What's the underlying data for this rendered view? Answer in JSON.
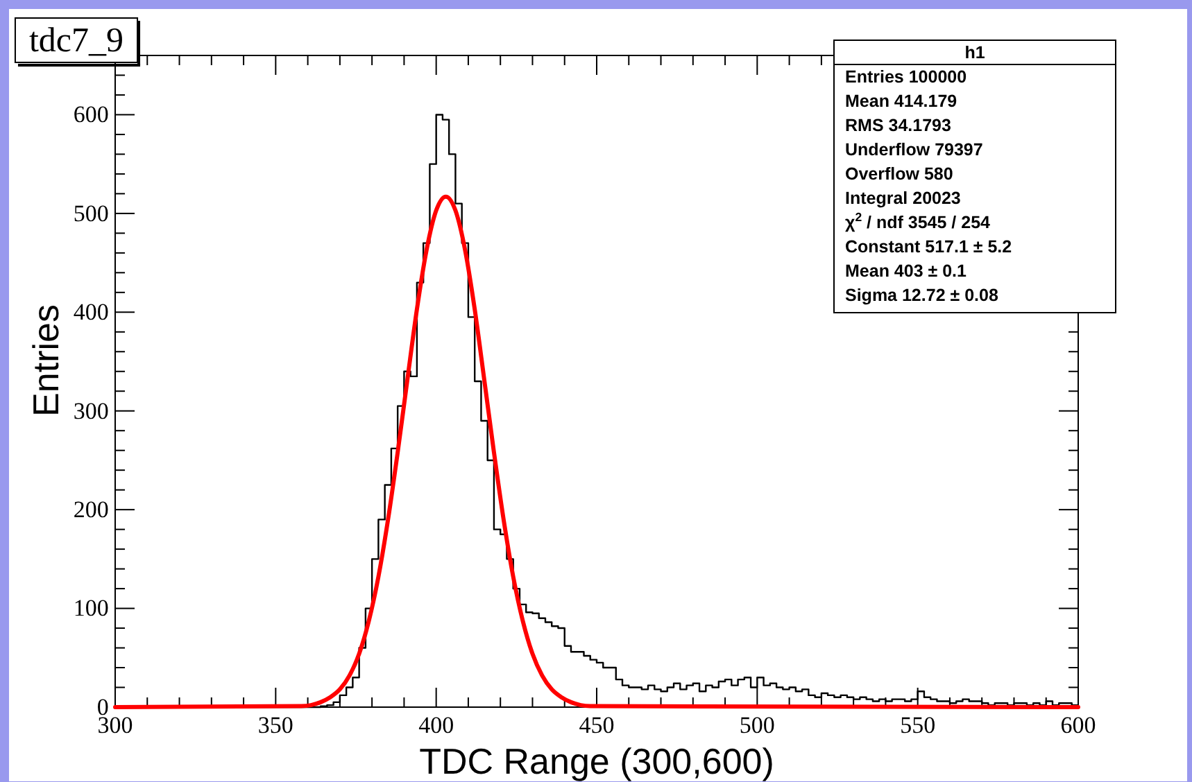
{
  "chart_data": {
    "type": "histogram",
    "title": "tdc7_9",
    "xlabel": "TDC Range (300,600)",
    "ylabel": "Entries",
    "annotations": [
      "h1",
      "Entries 100000",
      "Mean 414.179",
      "RMS 34.1793",
      "Underflow 79397",
      "Overflow 580",
      "Integral 20023",
      "χ$^{2}$ / ndf 3545 / 254",
      "Constant 517.1 ± 5.2",
      "Mean 403 ± 0.1",
      "Sigma 12.72 ± 0.08"
    ],
    "xlim": [
      300,
      600
    ],
    "ylim": [
      0,
      660
    ],
    "xticks": [
      300,
      {
        "value": 310,
        "label": null
      },
      {
        "value": 320,
        "label": null
      },
      {
        "value": 330,
        "label": null
      },
      {
        "value": 340,
        "label": null
      },
      350,
      {
        "value": 360,
        "label": null
      },
      {
        "value": 370,
        "label": null
      },
      {
        "value": 380,
        "label": null
      },
      {
        "value": 390,
        "label": null
      },
      400,
      {
        "value": 410,
        "label": null
      },
      {
        "value": 420,
        "label": null
      },
      {
        "value": 430,
        "label": null
      },
      {
        "value": 440,
        "label": null
      },
      450,
      {
        "value": 460,
        "label": null
      },
      {
        "value": 470,
        "label": null
      },
      {
        "value": 480,
        "label": null
      },
      {
        "value": 490,
        "label": null
      },
      500,
      {
        "value": 510,
        "label": null
      },
      {
        "value": 520,
        "label": null
      },
      {
        "value": 530,
        "label": null
      },
      {
        "value": 540,
        "label": null
      },
      550,
      {
        "value": 560,
        "label": null
      },
      {
        "value": 570,
        "label": null
      },
      {
        "value": 580,
        "label": null
      },
      {
        "value": 590,
        "label": null
      },
      600
    ],
    "yticks": [
      0,
      {
        "value": 20,
        "label": null
      },
      {
        "value": 40,
        "label": null
      },
      {
        "value": 60,
        "label": null
      },
      {
        "value": 80,
        "label": null
      },
      100,
      {
        "value": 120,
        "label": null
      },
      {
        "value": 140,
        "label": null
      },
      {
        "value": 160,
        "label": null
      },
      {
        "value": 180,
        "label": null
      },
      200,
      {
        "value": 220,
        "label": null
      },
      {
        "value": 240,
        "label": null
      },
      {
        "value": 260,
        "label": null
      },
      {
        "value": 280,
        "label": null
      },
      300,
      {
        "value": 320,
        "label": null
      },
      {
        "value": 340,
        "label": null
      },
      {
        "value": 360,
        "label": null
      },
      {
        "value": 380,
        "label": null
      },
      400,
      {
        "value": 420,
        "label": null
      },
      {
        "value": 440,
        "label": null
      },
      {
        "value": 460,
        "label": null
      },
      {
        "value": 480,
        "label": null
      },
      500,
      {
        "value": 520,
        "label": null
      },
      {
        "value": 540,
        "label": null
      },
      {
        "value": 560,
        "label": null
      },
      {
        "value": 580,
        "label": null
      },
      600,
      {
        "value": 620,
        "label": null
      },
      {
        "value": 640,
        "label": null
      }
    ],
    "grid": false,
    "bins": [
      300,
      302,
      304,
      306,
      308,
      310,
      312,
      314,
      316,
      318,
      320,
      322,
      324,
      326,
      328,
      330,
      332,
      334,
      336,
      338,
      340,
      342,
      344,
      346,
      348,
      350,
      352,
      354,
      356,
      358,
      360,
      362,
      364,
      366,
      368,
      370,
      372,
      374,
      376,
      378,
      380,
      382,
      384,
      386,
      388,
      390,
      392,
      394,
      396,
      398,
      400,
      402,
      404,
      406,
      408,
      410,
      412,
      414,
      416,
      418,
      420,
      422,
      424,
      426,
      428,
      430,
      432,
      434,
      436,
      438,
      440,
      442,
      444,
      446,
      448,
      450,
      452,
      454,
      456,
      458,
      460,
      462,
      464,
      466,
      468,
      470,
      472,
      474,
      476,
      478,
      480,
      482,
      484,
      486,
      488,
      490,
      492,
      494,
      496,
      498,
      500,
      502,
      504,
      506,
      508,
      510,
      512,
      514,
      516,
      518,
      520,
      522,
      524,
      526,
      528,
      530,
      532,
      534,
      536,
      538,
      540,
      542,
      544,
      546,
      548,
      550,
      552,
      554,
      556,
      558,
      560,
      562,
      564,
      566,
      568,
      570,
      572,
      574,
      576,
      578,
      580,
      582,
      584,
      586,
      588,
      590,
      592,
      594,
      596,
      598,
      600
    ],
    "series": [
      {
        "type": "histogram",
        "color": "#000000",
        "values": [
          0,
          0,
          0,
          0,
          0,
          0,
          0,
          0,
          0,
          0,
          0,
          0,
          0,
          0,
          0,
          0,
          0,
          0,
          0,
          0,
          0,
          0,
          0,
          0,
          0,
          0,
          0,
          0,
          0,
          0,
          0,
          0,
          1,
          2,
          5,
          12,
          20,
          30,
          60,
          100,
          150,
          190,
          225,
          262,
          305,
          340,
          335,
          430,
          470,
          550,
          600,
          595,
          560,
          510,
          470,
          395,
          330,
          290,
          250,
          180,
          175,
          150,
          120,
          104,
          96,
          95,
          90,
          86,
          82,
          80,
          62,
          56,
          56,
          52,
          48,
          45,
          40,
          40,
          28,
          22,
          20,
          20,
          18,
          22,
          18,
          16,
          20,
          24,
          18,
          22,
          24,
          16,
          22,
          20,
          26,
          28,
          22,
          28,
          30,
          20,
          30,
          22,
          24,
          20,
          18,
          20,
          16,
          18,
          12,
          10,
          14,
          12,
          10,
          12,
          10,
          8,
          10,
          8,
          6,
          8,
          6,
          8,
          8,
          6,
          8,
          16,
          10,
          8,
          6,
          6,
          4,
          6,
          8,
          6,
          6,
          4,
          2,
          4,
          4,
          2,
          4,
          4,
          2,
          4,
          2,
          6,
          2,
          4,
          4,
          2
        ]
      },
      {
        "type": "line",
        "color": "#ff0000",
        "x": [
          300,
          358,
          361,
          364,
          367,
          370,
          373,
          376,
          379,
          382,
          385,
          388,
          391,
          394,
          397,
          400,
          403,
          406,
          409,
          412,
          415,
          418,
          421,
          424,
          427,
          430,
          433,
          436,
          439,
          442,
          445,
          448,
          600
        ],
        "values": [
          0,
          1,
          2,
          5,
          10,
          18,
          32,
          54,
          87,
          132,
          190,
          258,
          331,
          403,
          463,
          503,
          517,
          503,
          463,
          403,
          331,
          258,
          190,
          132,
          87,
          54,
          32,
          18,
          10,
          5,
          2,
          1,
          0
        ]
      }
    ]
  }
}
